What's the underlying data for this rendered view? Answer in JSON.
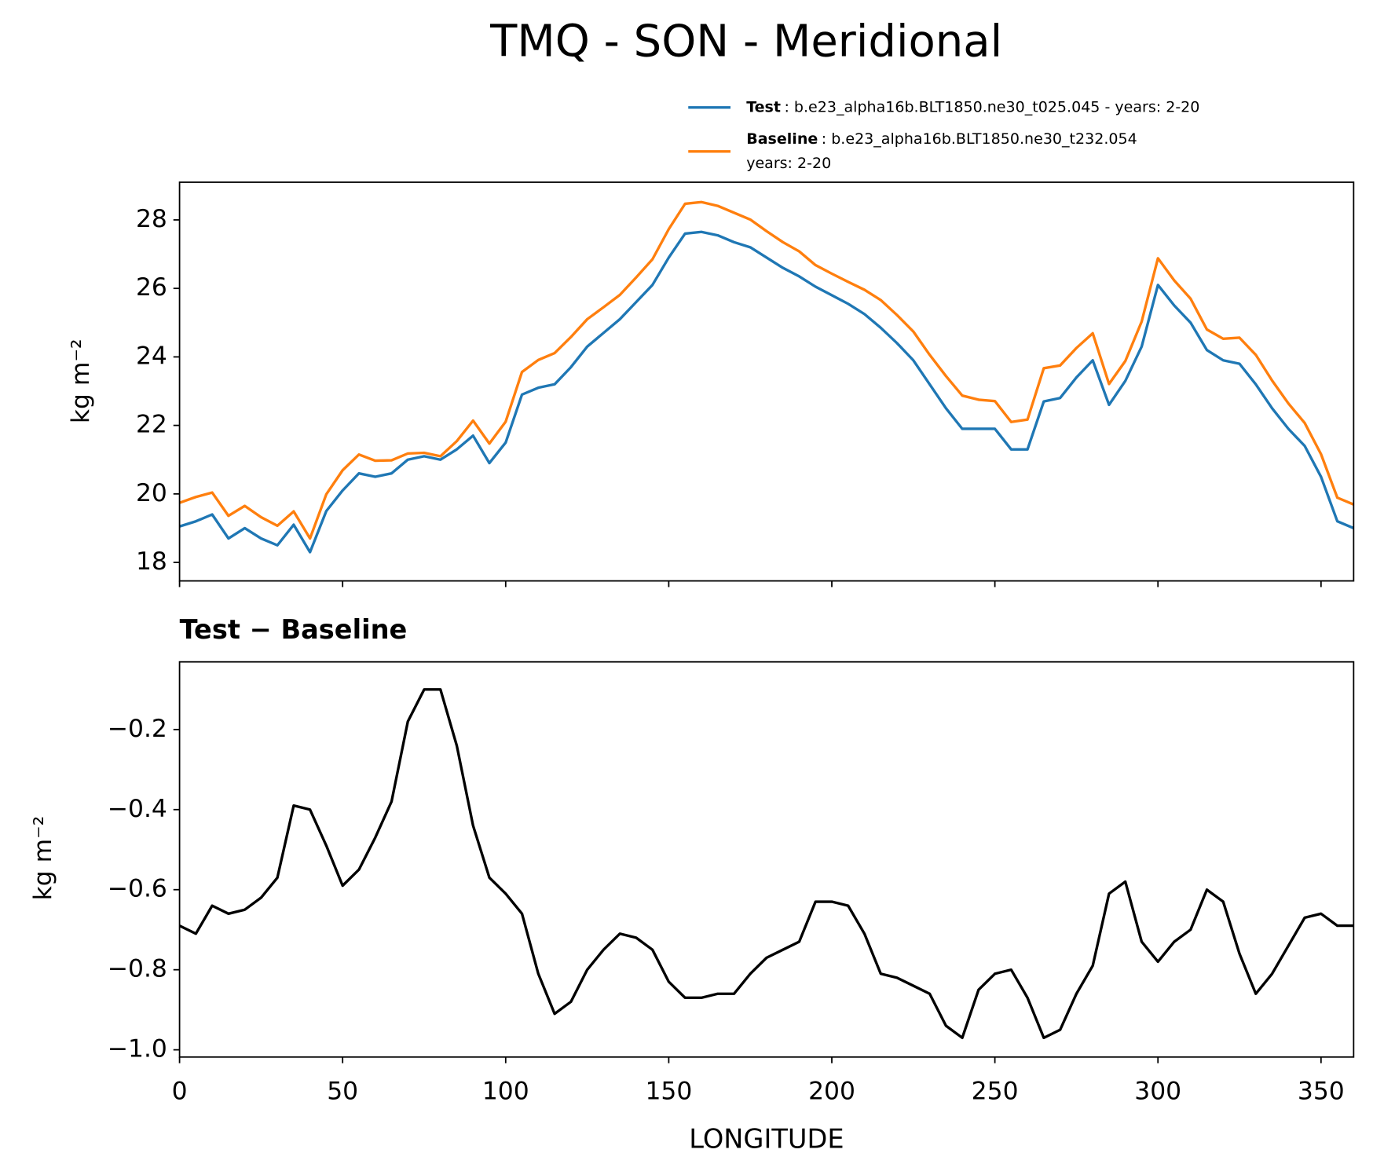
{
  "chart_data": [
    {
      "type": "line",
      "title": "TMQ - SON - Meridional",
      "ylabel": "kg m⁻²",
      "show_xticklabels": false,
      "x": [
        0,
        5,
        10,
        15,
        20,
        25,
        30,
        35,
        40,
        45,
        50,
        55,
        60,
        65,
        70,
        75,
        80,
        85,
        90,
        95,
        100,
        105,
        110,
        115,
        120,
        125,
        130,
        135,
        140,
        145,
        150,
        155,
        160,
        165,
        170,
        175,
        180,
        185,
        190,
        195,
        200,
        205,
        210,
        215,
        220,
        225,
        230,
        235,
        240,
        245,
        250,
        255,
        260,
        265,
        270,
        275,
        280,
        285,
        290,
        295,
        300,
        305,
        310,
        315,
        320,
        325,
        330,
        335,
        340,
        345,
        350,
        355,
        360
      ],
      "series": [
        {
          "name": "Test",
          "case_lines": [
            ": b.e23_alpha16b.BLT1850.ne30_t025.045 - years: 2-20"
          ],
          "color": "#1f77b4",
          "values": [
            19.05,
            19.2,
            19.4,
            18.7,
            19.0,
            18.7,
            18.5,
            19.1,
            18.3,
            19.5,
            20.1,
            20.6,
            20.5,
            20.6,
            21.0,
            21.1,
            21.0,
            21.3,
            21.7,
            20.9,
            21.5,
            22.9,
            23.1,
            23.2,
            23.7,
            24.3,
            24.7,
            25.1,
            25.6,
            26.1,
            26.9,
            27.6,
            27.65,
            27.55,
            27.35,
            27.2,
            26.9,
            26.6,
            26.35,
            26.05,
            25.8,
            25.55,
            25.25,
            24.85,
            24.4,
            23.9,
            23.2,
            22.5,
            21.9,
            21.9,
            21.9,
            21.3,
            21.3,
            22.7,
            22.8,
            23.4,
            23.9,
            22.6,
            23.3,
            24.3,
            26.1,
            25.5,
            25.0,
            24.2,
            23.9,
            23.8,
            23.2,
            22.5,
            21.9,
            21.4,
            20.5,
            19.2,
            19.0
          ]
        },
        {
          "name": "Baseline",
          "case_lines": [
            ": b.e23_alpha16b.BLT1850.ne30_t232.054",
            "years: 2-20"
          ],
          "color": "#ff7f0e",
          "values": [
            19.74,
            19.91,
            20.04,
            19.36,
            19.65,
            19.32,
            19.07,
            19.49,
            18.7,
            19.99,
            20.69,
            21.15,
            20.97,
            20.98,
            21.18,
            21.2,
            21.1,
            21.54,
            22.14,
            21.47,
            22.11,
            23.56,
            23.91,
            24.11,
            24.58,
            25.1,
            25.45,
            25.81,
            26.32,
            26.85,
            27.73,
            28.47,
            28.52,
            28.41,
            28.21,
            28.01,
            27.67,
            27.35,
            27.08,
            26.68,
            26.43,
            26.19,
            25.96,
            25.66,
            25.22,
            24.74,
            24.06,
            23.44,
            22.87,
            22.75,
            22.71,
            22.1,
            22.17,
            23.67,
            23.75,
            24.26,
            24.69,
            23.21,
            23.88,
            25.03,
            26.88,
            26.23,
            25.7,
            24.8,
            24.53,
            24.56,
            24.06,
            23.31,
            22.64,
            22.07,
            21.16,
            19.89,
            19.69
          ]
        }
      ],
      "xlim": [
        0,
        360
      ],
      "xticks": [
        0,
        50,
        100,
        150,
        200,
        250,
        300,
        350
      ],
      "ylim": [
        17.46,
        29.1
      ],
      "yticks": [
        18,
        20,
        22,
        24,
        26,
        28
      ]
    },
    {
      "type": "line",
      "title": "Test − Baseline",
      "xlabel": "LONGITUDE",
      "ylabel": "kg m⁻²",
      "show_xticklabels": true,
      "x": [
        0,
        5,
        10,
        15,
        20,
        25,
        30,
        35,
        40,
        45,
        50,
        55,
        60,
        65,
        70,
        75,
        80,
        85,
        90,
        95,
        100,
        105,
        110,
        115,
        120,
        125,
        130,
        135,
        140,
        145,
        150,
        155,
        160,
        165,
        170,
        175,
        180,
        185,
        190,
        195,
        200,
        205,
        210,
        215,
        220,
        225,
        230,
        235,
        240,
        245,
        250,
        255,
        260,
        265,
        270,
        275,
        280,
        285,
        290,
        295,
        300,
        305,
        310,
        315,
        320,
        325,
        330,
        335,
        340,
        345,
        350,
        355,
        360
      ],
      "series": [
        {
          "color": "#000000",
          "values": [
            -0.69,
            -0.71,
            -0.64,
            -0.66,
            -0.65,
            -0.62,
            -0.57,
            -0.39,
            -0.4,
            -0.49,
            -0.59,
            -0.55,
            -0.47,
            -0.38,
            -0.18,
            -0.1,
            -0.1,
            -0.24,
            -0.44,
            -0.57,
            -0.61,
            -0.66,
            -0.81,
            -0.91,
            -0.88,
            -0.8,
            -0.75,
            -0.71,
            -0.72,
            -0.75,
            -0.83,
            -0.87,
            -0.87,
            -0.86,
            -0.86,
            -0.81,
            -0.77,
            -0.75,
            -0.73,
            -0.63,
            -0.63,
            -0.64,
            -0.71,
            -0.81,
            -0.82,
            -0.84,
            -0.86,
            -0.94,
            -0.97,
            -0.85,
            -0.81,
            -0.8,
            -0.87,
            -0.97,
            -0.95,
            -0.86,
            -0.79,
            -0.61,
            -0.58,
            -0.73,
            -0.78,
            -0.73,
            -0.7,
            -0.6,
            -0.63,
            -0.76,
            -0.86,
            -0.81,
            -0.74,
            -0.67,
            -0.66,
            -0.69,
            -0.69
          ]
        }
      ],
      "xlim": [
        0,
        360
      ],
      "xticks": [
        0,
        50,
        100,
        150,
        200,
        250,
        300,
        350
      ],
      "ylim": [
        -1.018,
        -0.031
      ],
      "yticks": [
        {
          "value": -1.0,
          "label": "−1.0"
        },
        {
          "value": -0.8,
          "label": "−0.8"
        },
        {
          "value": -0.6,
          "label": "−0.6"
        },
        {
          "value": -0.4,
          "label": "−0.4"
        },
        {
          "value": -0.2,
          "label": "−0.2"
        }
      ]
    }
  ]
}
